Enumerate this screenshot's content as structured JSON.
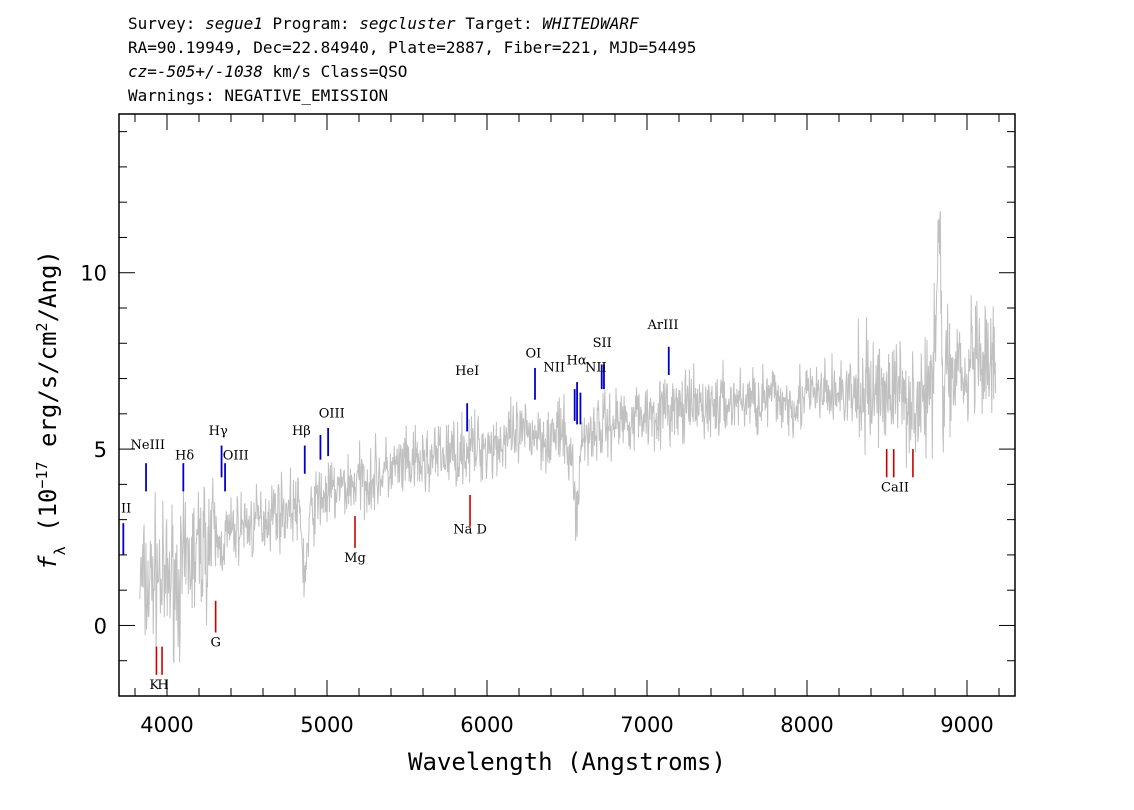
{
  "header": {
    "survey_label": "Survey:",
    "survey": "segue1",
    "program_label": "Program:",
    "program": "segcluster",
    "target_label": "Target:",
    "target": "WHITEDWARF",
    "line2": "RA=90.19949, Dec=22.84940, Plate=2887, Fiber=221, MJD=54495",
    "cz": "cz=-505+/-1038",
    "cz_units": "km/s Class=QSO",
    "warnings": "Warnings: NEGATIVE_EMISSION"
  },
  "chart_data": {
    "type": "line",
    "xlabel": "Wavelength (Angstroms)",
    "ylabel_parts": [
      "f",
      "λ",
      " (10",
      "−17",
      " erg/s/cm",
      "2",
      "/Ang)"
    ],
    "xlim": [
      3700,
      9300
    ],
    "ylim": [
      -2,
      14.5
    ],
    "x_ticks": [
      4000,
      5000,
      6000,
      7000,
      8000,
      9000
    ],
    "y_ticks": [
      0,
      5,
      10
    ],
    "colors": {
      "spectrum": "#000000",
      "noise": "#c0c0c0",
      "emission": "#0000cc",
      "absorption": "#cc0000"
    },
    "series": [
      {
        "role": "spectrum",
        "x": [
          3830,
          3880,
          3930,
          3980,
          4030,
          4080,
          4130,
          4180,
          4230,
          4280,
          4330,
          4380,
          4430,
          4480,
          4530,
          4580,
          4630,
          4680,
          4730,
          4780,
          4830,
          4861,
          4900,
          4950,
          5000,
          5100,
          5200,
          5300,
          5400,
          5500,
          5600,
          5700,
          5800,
          5900,
          6000,
          6100,
          6200,
          6300,
          6400,
          6450,
          6500,
          6530,
          6563,
          6590,
          6650,
          6700,
          6800,
          6900,
          7000,
          7100,
          7200,
          7300,
          7400,
          7500,
          7600,
          7700,
          7800,
          7900,
          8000,
          8100,
          8200,
          8300,
          8400,
          8500,
          8600,
          8700,
          8780,
          8830,
          8850,
          8880,
          8900,
          8950,
          8990,
          9030,
          9080,
          9130,
          9180
        ],
        "y": [
          1.3,
          1.0,
          1.6,
          1.1,
          1.5,
          1.2,
          1.8,
          2.0,
          2.3,
          2.5,
          2.2,
          2.6,
          2.7,
          2.9,
          2.8,
          3.0,
          3.1,
          3.3,
          3.2,
          3.4,
          3.2,
          1.3,
          3.2,
          3.6,
          3.7,
          3.9,
          4.1,
          4.2,
          4.4,
          4.5,
          4.6,
          4.8,
          4.9,
          5.0,
          5.1,
          5.2,
          5.35,
          5.5,
          5.3,
          5.5,
          5.1,
          4.6,
          3.1,
          5.2,
          5.55,
          5.6,
          5.8,
          5.9,
          6.0,
          6.1,
          6.1,
          6.2,
          6.2,
          6.3,
          6.4,
          6.4,
          6.45,
          6.3,
          6.5,
          6.55,
          6.6,
          6.5,
          6.6,
          6.7,
          6.6,
          6.2,
          6.6,
          12.0,
          5.5,
          8.3,
          6.6,
          7.8,
          6.3,
          7.7,
          7.1,
          7.3,
          7.3
        ]
      }
    ],
    "emission_lines": [
      {
        "label": "II",
        "x": 3727
      },
      {
        "label": "NeIII",
        "x": 3869
      },
      {
        "label": "Hδ",
        "x": 4102
      },
      {
        "label": "Hγ",
        "x": 4341
      },
      {
        "label": "OIII",
        "x": 4363
      },
      {
        "label": "Hβ",
        "x": 4861
      },
      {
        "label": "OIII",
        "x": 4959
      },
      {
        "label": "OIII",
        "x": 5007
      },
      {
        "label": "HeI",
        "x": 5876
      },
      {
        "label": "OI",
        "x": 6300
      },
      {
        "label": "NII",
        "x": 6548
      },
      {
        "label": "Hα",
        "x": 6563
      },
      {
        "label": "NII",
        "x": 6584
      },
      {
        "label": "SII",
        "x": 6717
      },
      {
        "label": "SII",
        "x": 6731
      },
      {
        "label": "ArIII",
        "x": 7136
      }
    ],
    "absorption_lines": [
      {
        "label": "K",
        "x": 3934
      },
      {
        "label": "H",
        "x": 3969
      },
      {
        "label": "G",
        "x": 4304
      },
      {
        "label": "Mg",
        "x": 5175
      },
      {
        "label": "Na D",
        "x": 5894
      },
      {
        "label": "CaII",
        "x": 8498
      },
      {
        "label": "CaII",
        "x": 8542
      },
      {
        "label": "CaII",
        "x": 8662
      }
    ]
  }
}
